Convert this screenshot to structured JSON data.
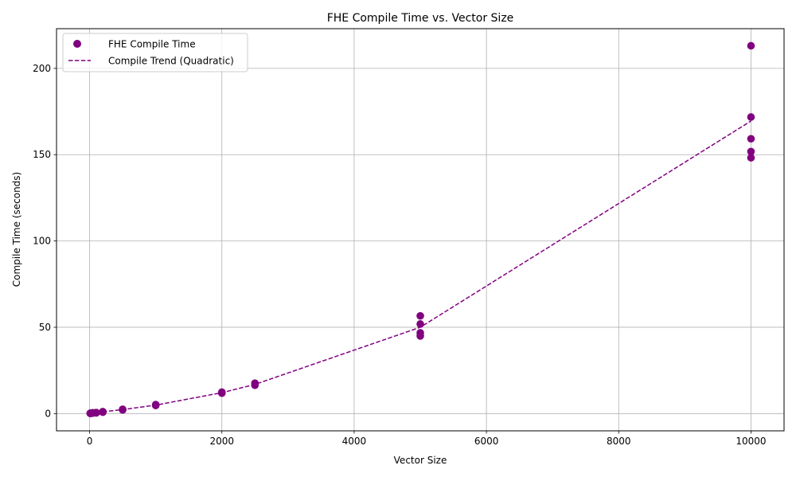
{
  "chart_data": {
    "type": "scatter",
    "title": "FHE Compile Time vs. Vector Size",
    "xlabel": "Vector Size",
    "ylabel": "Compile Time (seconds)",
    "xlim": [
      -500,
      10500
    ],
    "ylim": [
      -10,
      223
    ],
    "xticks": [
      0,
      2000,
      4000,
      6000,
      8000,
      10000
    ],
    "yticks": [
      0,
      50,
      100,
      150,
      200
    ],
    "grid": true,
    "legend_position": "top-left",
    "series": [
      {
        "name": "FHE Compile Time",
        "kind": "scatter",
        "color": "#800080",
        "points": [
          [
            10,
            0.1
          ],
          [
            10,
            0.2
          ],
          [
            20,
            0.1
          ],
          [
            20,
            0.3
          ],
          [
            50,
            0.3
          ],
          [
            50,
            0.5
          ],
          [
            100,
            0.4
          ],
          [
            100,
            0.6
          ],
          [
            200,
            0.8
          ],
          [
            200,
            1.1
          ],
          [
            500,
            2.1
          ],
          [
            500,
            2.5
          ],
          [
            1000,
            4.7
          ],
          [
            1000,
            5.2
          ],
          [
            2000,
            11.8
          ],
          [
            2000,
            12.4
          ],
          [
            2500,
            16.4
          ],
          [
            2500,
            17.6
          ],
          [
            5000,
            45.0
          ],
          [
            5000,
            46.8
          ],
          [
            5000,
            51.9
          ],
          [
            5000,
            56.6
          ],
          [
            10000,
            148.2
          ],
          [
            10000,
            151.8
          ],
          [
            10000,
            159.2
          ],
          [
            10000,
            171.8
          ],
          [
            10000,
            213.1
          ]
        ]
      },
      {
        "name": "Compile Trend (Quadratic)",
        "kind": "line",
        "style": "dashed",
        "color": "#800080",
        "points": [
          [
            10,
            0.1
          ],
          [
            20,
            0.2
          ],
          [
            50,
            0.4
          ],
          [
            100,
            0.5
          ],
          [
            200,
            1.0
          ],
          [
            500,
            2.3
          ],
          [
            1000,
            4.9
          ],
          [
            2000,
            12.1
          ],
          [
            2500,
            16.9
          ],
          [
            5000,
            50.0
          ],
          [
            10000,
            169.5
          ]
        ]
      }
    ]
  }
}
